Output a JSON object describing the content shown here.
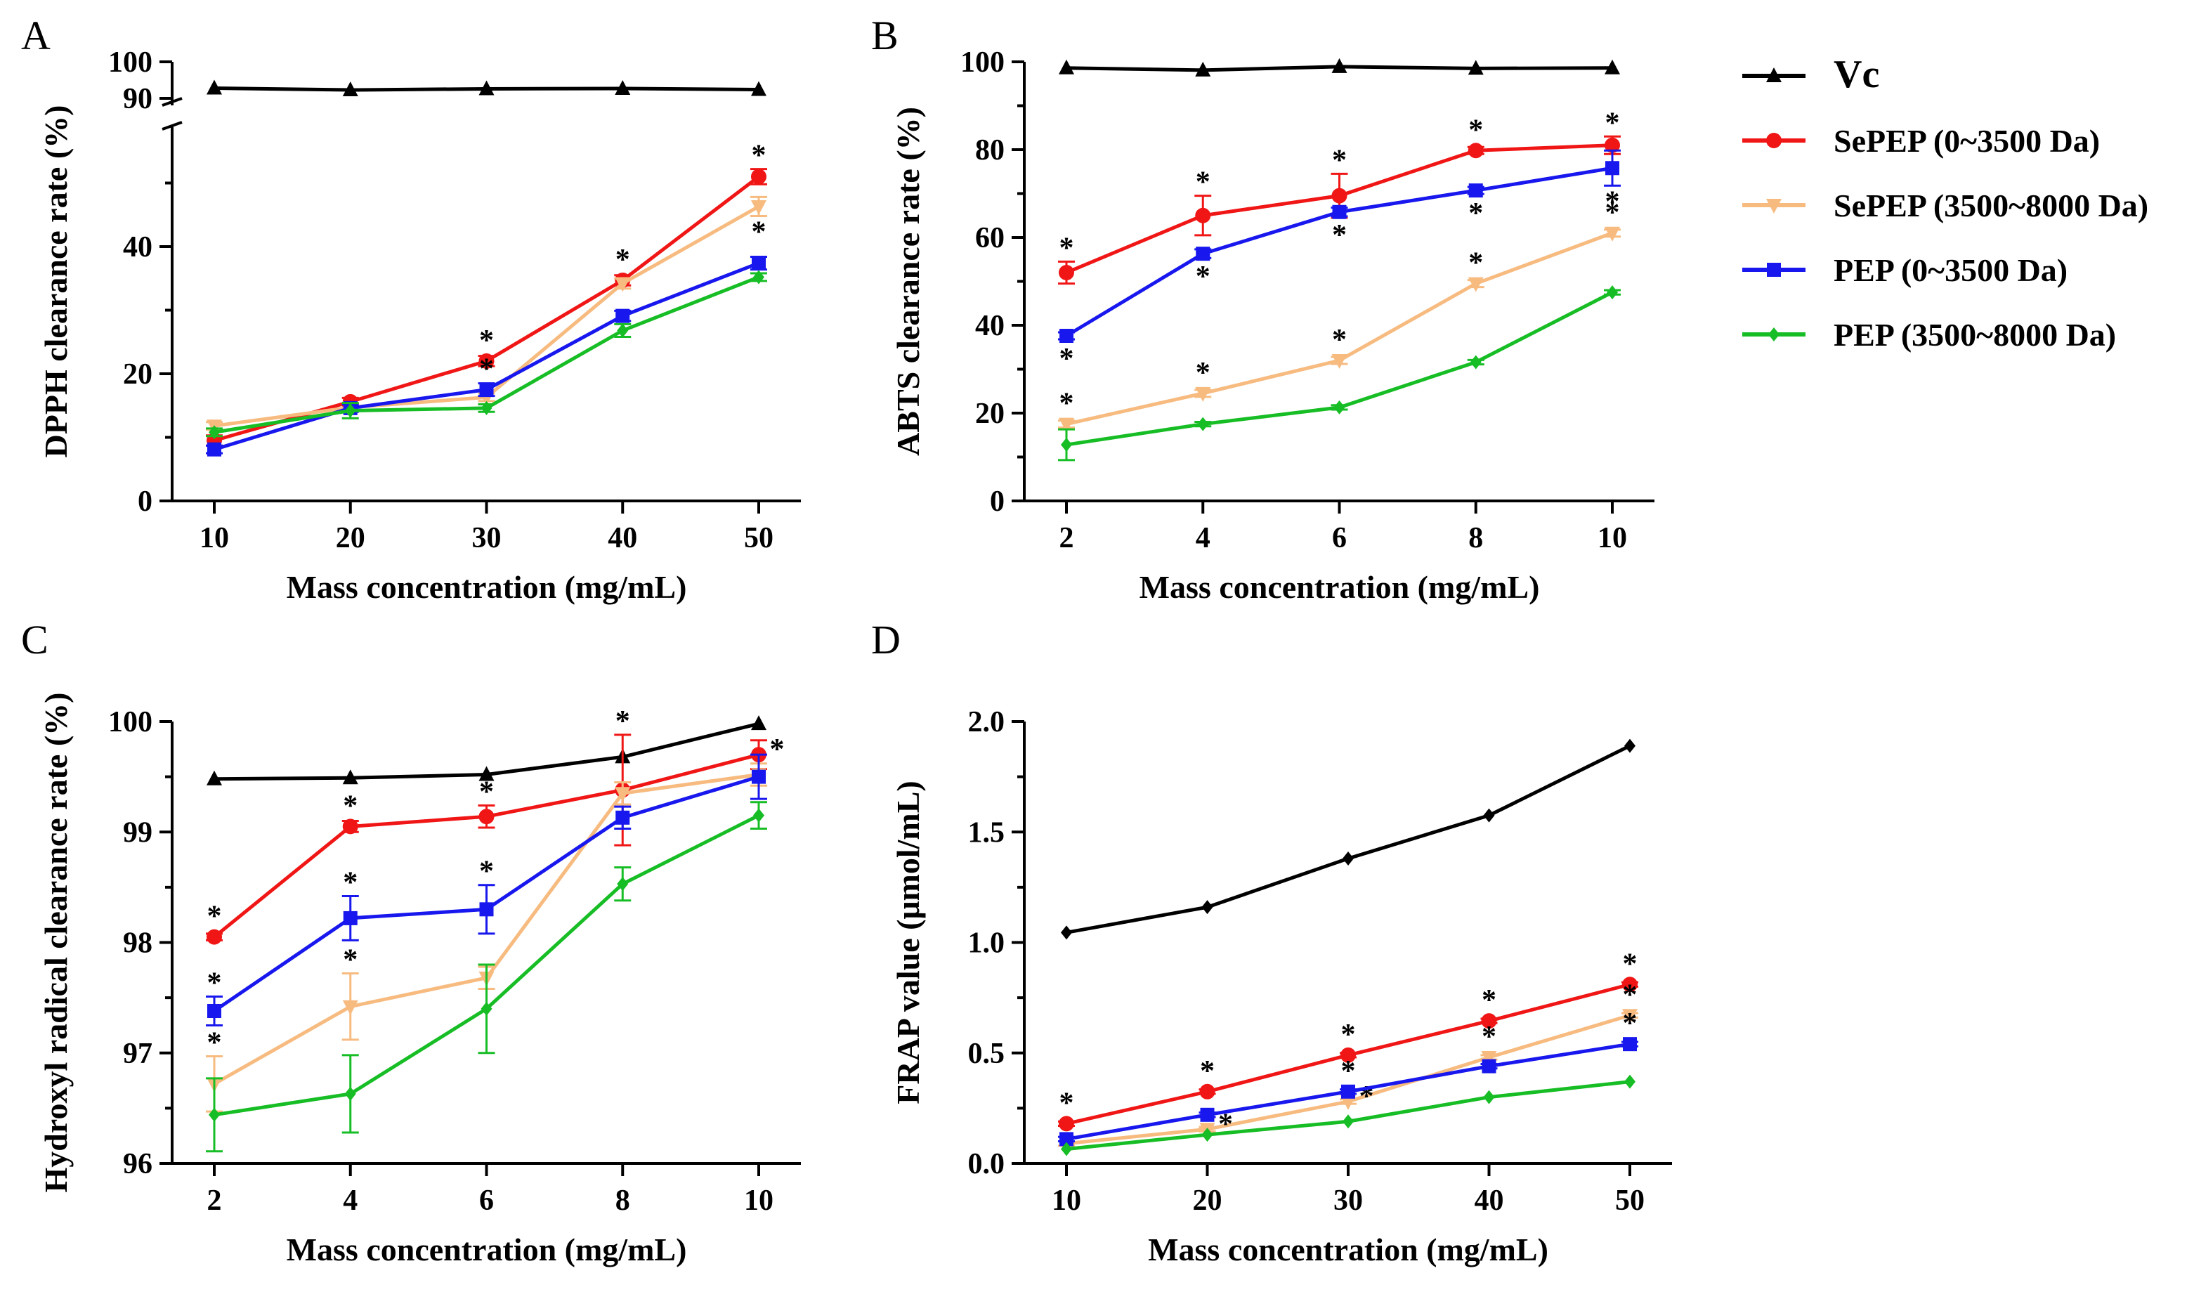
{
  "colors": {
    "Vc": "#000000",
    "SePEP (0~3500 Da)": "#f01616",
    "SePEP (3500~8000 Da)": "#f7bb80",
    "PEP (0~3500 Da)": "#1717ee",
    "PEP (3500~8000 Da)": "#17bd25"
  },
  "legend": {
    "position": "right",
    "entries": [
      {
        "name": "Vc",
        "marker": "triangle-up"
      },
      {
        "name": "SePEP (0~3500 Da)",
        "marker": "circle"
      },
      {
        "name": "SePEP (3500~8000 Da)",
        "marker": "triangle-down"
      },
      {
        "name": "PEP (0~3500 Da)",
        "marker": "square"
      },
      {
        "name": "PEP (3500~8000 Da)",
        "marker": "diamond"
      }
    ]
  },
  "chart_data": [
    {
      "panel": "A",
      "type": "line",
      "xlabel": "Mass concentration (mg/mL)",
      "ylabel": "DPPH clearance rate (%)",
      "x": [
        10,
        20,
        30,
        40,
        50
      ],
      "xlim": [
        5,
        55
      ],
      "ylim": [
        0,
        100
      ],
      "broken_y_axis": {
        "lower": [
          0,
          60
        ],
        "upper": [
          85,
          100
        ]
      },
      "yticks_lower": [
        0,
        20,
        40
      ],
      "yticks_upper": [
        90,
        100
      ],
      "series": [
        {
          "name": "Vc",
          "marker": "triangle-up",
          "values": [
            92.8,
            92.3,
            92.6,
            92.7,
            92.4
          ],
          "errors": [
            0.2,
            0.2,
            0.2,
            0.2,
            0.2
          ],
          "stars": [
            false,
            false,
            false,
            false,
            false
          ]
        },
        {
          "name": "SePEP (0~3500 Da)",
          "marker": "circle",
          "values": [
            9.5,
            15.6,
            22.0,
            34.7,
            51.0
          ],
          "errors": [
            0.8,
            0.6,
            0.8,
            0.8,
            1.2
          ],
          "stars": [
            false,
            false,
            true,
            true,
            true
          ],
          "star_side": [
            "up",
            "up",
            "up",
            "up",
            "up"
          ]
        },
        {
          "name": "SePEP (3500~8000 Da)",
          "marker": "triangle-down",
          "values": [
            11.8,
            14.7,
            16.3,
            34.2,
            46.3
          ],
          "errors": [
            0.6,
            0.6,
            0.6,
            0.8,
            1.5
          ],
          "stars": [
            false,
            false,
            false,
            false,
            true
          ],
          "star_side": [
            "down",
            "down",
            "down",
            "down",
            "down"
          ]
        },
        {
          "name": "PEP (0~3500 Da)",
          "marker": "square",
          "values": [
            8.1,
            14.6,
            17.5,
            29.1,
            37.4
          ],
          "errors": [
            0.6,
            0.6,
            1.0,
            0.8,
            1.0
          ],
          "stars": [
            false,
            false,
            true,
            false,
            false
          ],
          "star_side": [
            "up",
            "up",
            "up",
            "up",
            "up"
          ]
        },
        {
          "name": "PEP (3500~8000 Da)",
          "marker": "diamond",
          "values": [
            10.8,
            14.2,
            14.6,
            26.8,
            35.2
          ],
          "errors": [
            0.6,
            1.2,
            0.6,
            1.0,
            0.6
          ],
          "stars": [
            false,
            false,
            false,
            false,
            false
          ]
        }
      ]
    },
    {
      "panel": "B",
      "type": "line",
      "xlabel": "Mass concentration (mg/mL)",
      "ylabel": "ABTS clearance rate (%)",
      "x": [
        2,
        4,
        6,
        8,
        10
      ],
      "xlim": [
        1,
        11
      ],
      "ylim": [
        0,
        100
      ],
      "yticks": [
        0,
        20,
        40,
        60,
        80,
        100
      ],
      "series": [
        {
          "name": "Vc",
          "marker": "triangle-up",
          "values": [
            98.6,
            98.1,
            98.9,
            98.5,
            98.6
          ],
          "errors": [
            0.3,
            0.3,
            0.3,
            0.3,
            0.3
          ],
          "stars": [
            false,
            false,
            false,
            false,
            false
          ]
        },
        {
          "name": "SePEP (0~3500 Da)",
          "marker": "circle",
          "values": [
            52.0,
            65.0,
            69.5,
            79.8,
            81.0
          ],
          "errors": [
            2.5,
            4.5,
            5.0,
            0.8,
            2.0
          ],
          "stars": [
            true,
            true,
            true,
            true,
            true
          ],
          "star_side": [
            "up",
            "up",
            "up",
            "up",
            "up"
          ]
        },
        {
          "name": "SePEP (3500~8000 Da)",
          "marker": "triangle-down",
          "values": [
            17.5,
            24.5,
            32.0,
            49.5,
            61.0
          ],
          "errors": [
            0.8,
            0.8,
            0.8,
            0.8,
            0.8
          ],
          "stars": [
            true,
            true,
            true,
            true,
            true
          ],
          "star_side": [
            "up",
            "up",
            "up",
            "up",
            "up"
          ]
        },
        {
          "name": "PEP (0~3500 Da)",
          "marker": "square",
          "values": [
            37.6,
            56.3,
            65.8,
            70.7,
            75.8
          ],
          "errors": [
            0.8,
            1.0,
            1.0,
            0.8,
            4.0
          ],
          "stars": [
            true,
            true,
            true,
            true,
            true
          ],
          "star_side": [
            "down",
            "down",
            "down",
            "down",
            "down"
          ]
        },
        {
          "name": "PEP (3500~8000 Da)",
          "marker": "diamond",
          "values": [
            12.8,
            17.5,
            21.3,
            31.6,
            47.5
          ],
          "errors": [
            3.5,
            0.5,
            0.5,
            0.5,
            0.5
          ],
          "stars": [
            false,
            false,
            false,
            false,
            false
          ]
        }
      ]
    },
    {
      "panel": "C",
      "type": "line",
      "xlabel": "Mass concentration (mg/mL)",
      "ylabel": "Hydroxyl radical clearance rate (%)",
      "x": [
        2,
        4,
        6,
        8,
        10
      ],
      "xlim": [
        1,
        11
      ],
      "ylim": [
        96,
        100
      ],
      "yticks": [
        96,
        97,
        98,
        99,
        100
      ],
      "series": [
        {
          "name": "Vc",
          "marker": "triangle-up",
          "values": [
            99.48,
            99.49,
            99.52,
            99.68,
            99.98
          ],
          "errors": [
            0.01,
            0.01,
            0.01,
            0.01,
            0.01
          ],
          "stars": [
            false,
            false,
            false,
            false,
            false
          ]
        },
        {
          "name": "SePEP (0~3500 Da)",
          "marker": "circle",
          "values": [
            98.05,
            99.05,
            99.14,
            99.38,
            99.7
          ],
          "errors": [
            0.03,
            0.05,
            0.1,
            0.5,
            0.13
          ],
          "stars": [
            true,
            true,
            true,
            true,
            true
          ],
          "star_side": [
            "up",
            "up",
            "up",
            "up",
            "right"
          ]
        },
        {
          "name": "SePEP (3500~8000 Da)",
          "marker": "triangle-down",
          "values": [
            96.72,
            97.42,
            97.68,
            99.35,
            99.52
          ],
          "errors": [
            0.25,
            0.3,
            0.1,
            0.1,
            0.1
          ],
          "stars": [
            true,
            true,
            false,
            false,
            false
          ],
          "star_side": [
            "up",
            "up",
            "up",
            "up",
            "up"
          ]
        },
        {
          "name": "PEP (0~3500 Da)",
          "marker": "square",
          "values": [
            97.38,
            98.22,
            98.3,
            99.13,
            99.5
          ],
          "errors": [
            0.13,
            0.2,
            0.22,
            0.1,
            0.2
          ],
          "stars": [
            true,
            true,
            true,
            false,
            false
          ],
          "star_side": [
            "up",
            "up",
            "up",
            "up",
            "up"
          ]
        },
        {
          "name": "PEP (3500~8000 Da)",
          "marker": "diamond",
          "values": [
            96.44,
            96.63,
            97.4,
            98.53,
            99.15
          ],
          "errors": [
            0.33,
            0.35,
            0.4,
            0.15,
            0.12
          ],
          "stars": [
            false,
            false,
            false,
            false,
            false
          ]
        }
      ]
    },
    {
      "panel": "D",
      "type": "line",
      "xlabel": "Mass concentration (mg/mL)",
      "ylabel": "FRAP value (μmol/mL)",
      "x": [
        10,
        20,
        30,
        40,
        50
      ],
      "xlim": [
        5,
        55
      ],
      "ylim": [
        0,
        2.0
      ],
      "yticks": [
        "0.0",
        "0.5",
        "1.0",
        "1.5",
        "2.0"
      ],
      "series": [
        {
          "name": "Vc",
          "marker": "diamond",
          "values": [
            1.045,
            1.16,
            1.38,
            1.575,
            1.89
          ],
          "errors": [
            0,
            0,
            0,
            0,
            0
          ],
          "stars": [
            false,
            false,
            false,
            false,
            false
          ]
        },
        {
          "name": "SePEP (0~3500 Da)",
          "marker": "circle",
          "values": [
            0.18,
            0.325,
            0.49,
            0.645,
            0.81
          ],
          "errors": [
            0.01,
            0.01,
            0.01,
            0.01,
            0.01
          ],
          "stars": [
            true,
            true,
            true,
            true,
            true
          ],
          "star_side": [
            "up",
            "up",
            "up",
            "up",
            "up"
          ]
        },
        {
          "name": "SePEP (3500~8000 Da)",
          "marker": "triangle-down",
          "values": [
            0.09,
            0.155,
            0.28,
            0.48,
            0.67
          ],
          "errors": [
            0.01,
            0.01,
            0.01,
            0.01,
            0.01
          ],
          "stars": [
            false,
            true,
            true,
            true,
            true
          ],
          "star_side": [
            "right",
            "right",
            "right",
            "up",
            "up"
          ]
        },
        {
          "name": "PEP (0~3500 Da)",
          "marker": "square",
          "values": [
            0.11,
            0.22,
            0.325,
            0.44,
            0.54
          ],
          "errors": [
            0.01,
            0.01,
            0.01,
            0.01,
            0.01
          ],
          "stars": [
            false,
            false,
            true,
            false,
            true
          ],
          "star_side": [
            "up",
            "up",
            "up",
            "right",
            "up"
          ]
        },
        {
          "name": "PEP (3500~8000 Da)",
          "marker": "diamond",
          "values": [
            0.065,
            0.13,
            0.19,
            0.3,
            0.37
          ],
          "errors": [
            0.005,
            0.005,
            0.005,
            0.005,
            0.005
          ],
          "stars": [
            false,
            false,
            false,
            false,
            false
          ]
        }
      ]
    }
  ]
}
